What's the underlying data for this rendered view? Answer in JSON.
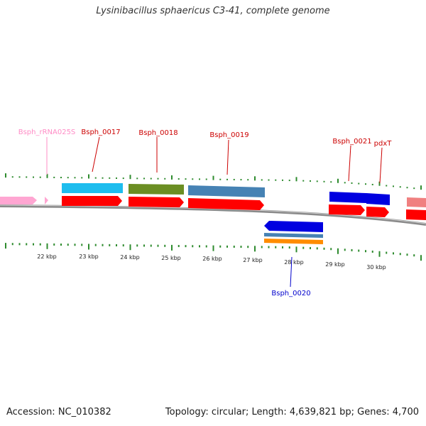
{
  "title": "Lysinibacillus sphaericus C3-41, complete genome",
  "accession": "Accession: NC_010382",
  "stats": "Topology: circular; Length: 4,639,821 bp; Genes: 4,700",
  "colors": {
    "cds_red": "#ff0000",
    "rrna_pink": "#ffa6d2",
    "gene_0017": "#1ebdee",
    "gene_0018": "#6b8e23",
    "gene_0019": "#4682b4",
    "gene_0020": "#0000e0",
    "gene_0021": "#0000e0",
    "pdxT": "#0000e0",
    "backbone": "#888888",
    "tick": "#2e8b2e"
  },
  "ruler": [
    "22 kbp",
    "23 kbp",
    "24 kbp",
    "25 kbp",
    "26 kbp",
    "27 kbp",
    "28 kbp",
    "29 kbp",
    "30 kbp"
  ],
  "features": [
    {
      "name": "Bsph_rRNA025S",
      "color": "#ff8cc6"
    },
    {
      "name": "Bsph_0017",
      "color": "#cc0000"
    },
    {
      "name": "Bsph_0018",
      "color": "#cc0000"
    },
    {
      "name": "Bsph_0019",
      "color": "#cc0000"
    },
    {
      "name": "Bsph_0021",
      "color": "#cc0000"
    },
    {
      "name": "pdxT",
      "color": "#cc0000"
    },
    {
      "name": "Bsph_0020",
      "color": "#0000cc"
    }
  ]
}
